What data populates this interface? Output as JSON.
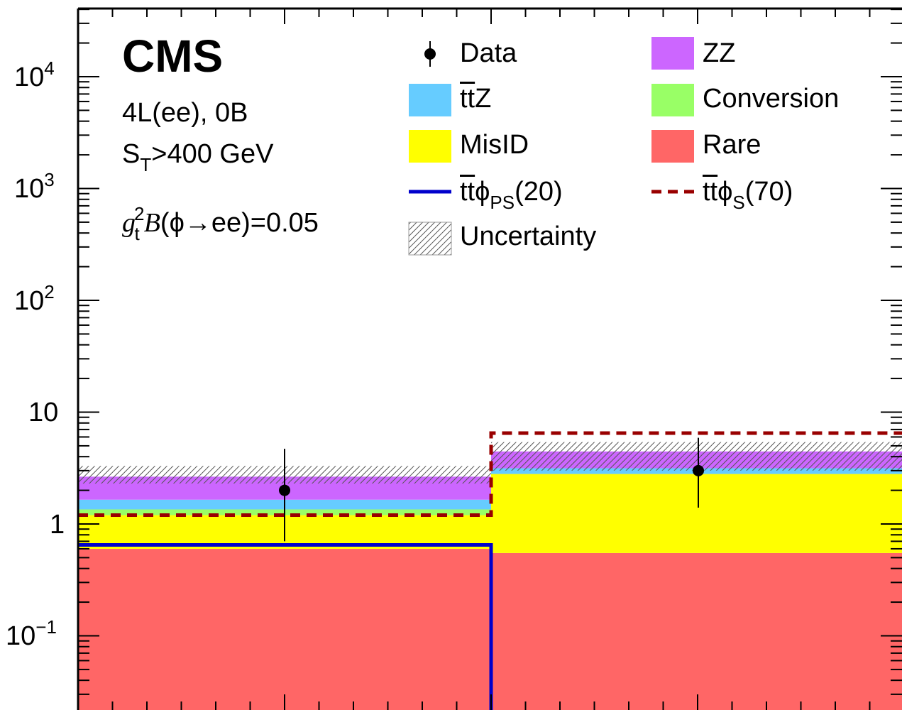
{
  "chart_data": {
    "type": "bar",
    "stacked": true,
    "log_y": true,
    "ylim": [
      0.02,
      30000
    ],
    "bins": 2,
    "experiment_label": "CMS",
    "info_lines": [
      "4L(ee), 0B",
      "S_T>400 GeV",
      "g_t^2 B(ϕ→ee)=0.05"
    ],
    "y_tick_labels": [
      "10⁻¹",
      "1",
      "10",
      "10²",
      "10³",
      "10⁴"
    ],
    "y_tick_values": [
      0.1,
      1,
      10,
      100,
      1000,
      10000
    ],
    "stack": [
      {
        "name": "Rare",
        "color": "#ff6666",
        "values": [
          0.6,
          0.55
        ]
      },
      {
        "name": "MisID",
        "color": "#ffff00",
        "values": [
          0.6,
          2.25
        ]
      },
      {
        "name": "Conversion",
        "color": "#99ff66",
        "values": [
          0.15,
          0.0
        ]
      },
      {
        "name": "ttZ",
        "color": "#66ccff",
        "values": [
          0.3,
          0.35
        ]
      },
      {
        "name": "ZZ",
        "color": "#cc66ff",
        "values": [
          1.0,
          1.3
        ]
      }
    ],
    "uncertainty": {
      "name": "Uncertainty",
      "band": [
        [
          2.3,
          3.3
        ],
        [
          3.0,
          5.4
        ]
      ]
    },
    "data": {
      "name": "Data",
      "values": [
        2,
        3
      ],
      "err_low": [
        1.3,
        1.6
      ],
      "err_high": [
        2.7,
        2.9
      ]
    },
    "signals": [
      {
        "name": "ttϕ_PS(20)",
        "color": "#0000cc",
        "style": "solid",
        "values": [
          0.65,
          0.0
        ]
      },
      {
        "name": "ttϕ_S(70)",
        "color": "#990000",
        "style": "dashed",
        "values": [
          1.2,
          6.5
        ]
      }
    ]
  },
  "legend": {
    "data": "Data",
    "zz": "ZZ",
    "ttz_main": "tt",
    "ttz_suffix": "Z",
    "conversion": "Conversion",
    "misid": "MisID",
    "rare": "Rare",
    "ps_main": "tt",
    "ps_phi": "ϕ",
    "ps_sub": "PS",
    "ps_tail": "(20)",
    "s_main": "tt",
    "s_phi": "ϕ",
    "s_sub": "S",
    "s_tail": "(70)",
    "uncertainty": "Uncertainty"
  },
  "info": {
    "line1": "4L(ee), 0B",
    "st_main": "S",
    "st_sub": "T",
    "st_tail": ">400 GeV",
    "g": "g",
    "g_sup": "2",
    "g_sub": "t",
    "b": "B",
    "decay": "(ϕ→ee)=0.05"
  }
}
